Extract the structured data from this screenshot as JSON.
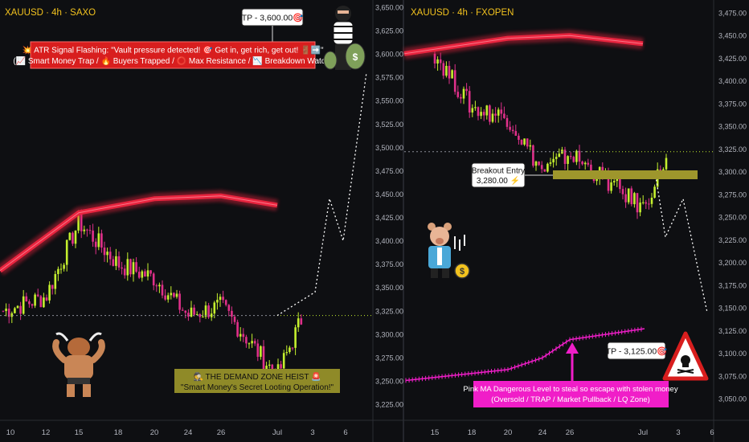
{
  "left_panel": {
    "symbol": "XAUUSD · 4h · SAXO",
    "y_ticks": [
      "3,650.00",
      "3,625.00",
      "3,600.00",
      "3,575.00",
      "3,550.00",
      "3,525.00",
      "3,500.00",
      "3,475.00",
      "3,450.00",
      "3,425.00",
      "3,400.00",
      "3,375.00",
      "3,350.00",
      "3,325.00",
      "3,300.00",
      "3,275.00",
      "3,250.00",
      "3,225.00"
    ],
    "x_ticks": [
      "10",
      "12",
      "15",
      "18",
      "20",
      "24",
      "26",
      "Jul",
      "3",
      "6"
    ],
    "tp_label": "TP - 3,600.00🎯",
    "signal_line1": "💥 ATR Signal Flashing: \"Vault pressure detected! 🎯 Get in, get rich, get out! 🚪➡️\"",
    "signal_line2": "(📈 Smart Money Trap / 🔥 Buyers Trapped / ⭕ Max Resistance / 📉 Breakdown Watch)",
    "demand_line1": "🕵️ THE DEMAND ZONE HEIST 🚨",
    "demand_line2": "\"Smart Money's Secret Looting Operation!\""
  },
  "right_panel": {
    "symbol": "XAUUSD · 4h · FXOPEN",
    "y_ticks": [
      "3,475.00",
      "3,450.00",
      "3,425.00",
      "3,400.00",
      "3,375.00",
      "3,350.00",
      "3,325.00",
      "3,300.00",
      "3,275.00",
      "3,250.00",
      "3,225.00",
      "3,200.00",
      "3,175.00",
      "3,150.00",
      "3,125.00",
      "3,100.00",
      "3,075.00",
      "3,050.00"
    ],
    "x_ticks": [
      "15",
      "18",
      "20",
      "24",
      "26",
      "Jul",
      "3",
      "6"
    ],
    "entry_line1": "Breakout Entry",
    "entry_line2": "3,280.00 ⚡",
    "tp_label": "TP - 3,125.00🎯",
    "pink_line1": "Pink MA Dangerous Level to steal so escape with stolen money",
    "pink_line2": "(Oversold / TRAP / Market Pullback / LQ Zone)"
  },
  "colors": {
    "background": "#0e0f12",
    "bull_candle": "#c4ef2e",
    "bear_candle": "#e0308a",
    "ma_band": "#e8243e",
    "pink_ma": "#f01ec8",
    "signal_box": "#d81e1e",
    "demand_box": "#8f8a28",
    "entry_zone": "#9e962c"
  },
  "chart_data": [
    {
      "type": "candlestick",
      "title": "XAUUSD · 4h · SAXO",
      "x_categories": [
        "10",
        "12",
        "15",
        "18",
        "20",
        "24",
        "26",
        "Jul",
        "3",
        "6"
      ],
      "ylim": [
        3225,
        3650
      ],
      "close_path": [
        {
          "x": "10",
          "y": 3325
        },
        {
          "x": "12",
          "y": 3340
        },
        {
          "x": "15",
          "y": 3420
        },
        {
          "x": "18",
          "y": 3375
        },
        {
          "x": "20",
          "y": 3360
        },
        {
          "x": "24",
          "y": 3320
        },
        {
          "x": "26",
          "y": 3330
        },
        {
          "x": "Jul",
          "y": 3255
        },
        {
          "x": "Jul",
          "y": 3320
        }
      ],
      "ma_band": [
        {
          "x": "10",
          "y": 3368
        },
        {
          "x": "15",
          "y": 3430
        },
        {
          "x": "20",
          "y": 3445
        },
        {
          "x": "26",
          "y": 3448
        },
        {
          "x": "Jul",
          "y": 3438
        }
      ],
      "projection": [
        {
          "x": "Jul",
          "y": 3320
        },
        {
          "x": "3",
          "y": 3345
        },
        {
          "x": "3",
          "y": 3445
        },
        {
          "x": "6",
          "y": 3400
        },
        {
          "x": "6",
          "y": 3580
        }
      ],
      "levels": {
        "horizontal_dotted": 3320,
        "take_profit": 3600
      }
    },
    {
      "type": "candlestick",
      "title": "XAUUSD · 4h · FXOPEN",
      "x_categories": [
        "15",
        "18",
        "20",
        "24",
        "26",
        "Jul",
        "3",
        "6"
      ],
      "ylim": [
        3050,
        3475
      ],
      "close_path": [
        {
          "x": "15",
          "y": 3430
        },
        {
          "x": "18",
          "y": 3370
        },
        {
          "x": "20",
          "y": 3360
        },
        {
          "x": "24",
          "y": 3300
        },
        {
          "x": "26",
          "y": 3320
        },
        {
          "x": "Jul",
          "y": 3260
        },
        {
          "x": "Jul",
          "y": 3320
        }
      ],
      "ma_band": [
        {
          "x": "15",
          "y": 3430
        },
        {
          "x": "20",
          "y": 3447
        },
        {
          "x": "26",
          "y": 3450
        },
        {
          "x": "Jul",
          "y": 3441
        }
      ],
      "pink_ma": [
        {
          "x": "15",
          "y": 3070
        },
        {
          "x": "20",
          "y": 3082
        },
        {
          "x": "24",
          "y": 3095
        },
        {
          "x": "26",
          "y": 3115
        },
        {
          "x": "Jul",
          "y": 3127
        }
      ],
      "projection": [
        {
          "x": "Jul",
          "y": 3300
        },
        {
          "x": "3",
          "y": 3228
        },
        {
          "x": "3",
          "y": 3270
        },
        {
          "x": "6",
          "y": 3145
        }
      ],
      "levels": {
        "breakout_entry": 3280,
        "take_profit": 3125,
        "horizontal_dotted": 3322
      }
    }
  ]
}
